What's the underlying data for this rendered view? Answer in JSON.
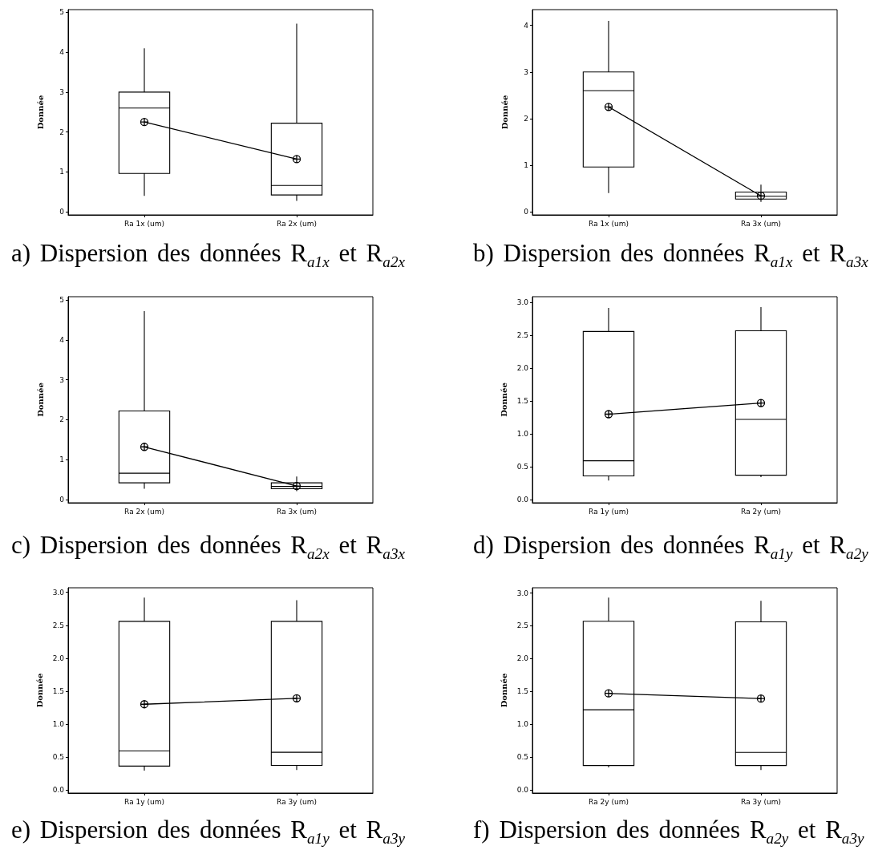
{
  "chart_data": [
    {
      "type": "box",
      "title": "a) Dispersion des données R$_{a1x}$ et R$_{a2x}$",
      "ylabel": "Donnée",
      "categories": [
        "Ra 1x (um)",
        "Ra 2x (um)"
      ],
      "marker": "cross",
      "ylim": [
        -0.08,
        5.07
      ],
      "yticks": [
        0,
        1,
        2,
        3,
        4,
        5
      ],
      "series": [
        {
          "color": "#000000",
          "boxes": [
            {
              "low": 0.4,
              "q1": 0.96,
              "median": 2.6,
              "q3": 3.0,
              "high": 4.1
            },
            {
              "low": 0.27,
              "q1": 0.42,
              "median": 0.66,
              "q3": 2.22,
              "high": 4.72
            }
          ]
        },
        {
          "type": "line",
          "color": "#000000",
          "values": [
            2.25,
            1.32
          ]
        }
      ]
    },
    {
      "type": "box",
      "title": "b) Dispersion des données R$_{a1x}$ et R$_{a3x}$",
      "ylabel": "Donnée",
      "categories": [
        "Ra 1x (um)",
        "Ra 3x (um)"
      ],
      "marker": "cross",
      "ylim": [
        -0.07,
        4.34
      ],
      "yticks": [
        0,
        1,
        2,
        3,
        4
      ],
      "series": [
        {
          "color": "#000000",
          "boxes": [
            {
              "low": 0.4,
              "q1": 0.96,
              "median": 2.6,
              "q3": 3.0,
              "high": 4.1
            },
            {
              "low": 0.21,
              "q1": 0.27,
              "median": 0.33,
              "q3": 0.42,
              "high": 0.58
            }
          ]
        },
        {
          "type": "line",
          "color": "#000000",
          "values": [
            2.25,
            0.34
          ]
        }
      ]
    },
    {
      "type": "box",
      "title": "c) Dispersion des données R$_{a2x}$ et R$_{a3x}$",
      "ylabel": "Donnée",
      "categories": [
        "Ra 2x (um)",
        "Ra 3x (um)"
      ],
      "marker": "cross",
      "ylim": [
        -0.08,
        5.08
      ],
      "yticks": [
        0,
        1,
        2,
        3,
        4,
        5
      ],
      "series": [
        {
          "color": "#000000",
          "boxes": [
            {
              "low": 0.27,
              "q1": 0.42,
              "median": 0.66,
              "q3": 2.22,
              "high": 4.72
            },
            {
              "low": 0.21,
              "q1": 0.27,
              "median": 0.33,
              "q3": 0.42,
              "high": 0.58
            }
          ]
        },
        {
          "type": "line",
          "color": "#000000",
          "values": [
            1.32,
            0.34
          ]
        }
      ]
    },
    {
      "type": "box",
      "title": "d) Dispersion des données R$_{a1y}$ et R$_{a2y}$",
      "ylabel": "Donnée",
      "categories": [
        "Ra 1y (um)",
        "Ra 2y (um)"
      ],
      "marker": "cross",
      "ylim": [
        -0.05,
        3.09
      ],
      "yticks": [
        {
          "value": 0,
          "label": "0.0"
        },
        0.5,
        {
          "value": 1,
          "label": "1.0"
        },
        1.5,
        {
          "value": 2,
          "label": "2.0"
        },
        2.5,
        {
          "value": 3,
          "label": "3.0"
        }
      ],
      "series": [
        {
          "color": "#000000",
          "boxes": [
            {
              "low": 0.29,
              "q1": 0.36,
              "median": 0.59,
              "q3": 2.56,
              "high": 2.92
            },
            {
              "low": 0.34,
              "q1": 0.37,
              "median": 1.22,
              "q3": 2.57,
              "high": 2.93
            }
          ]
        },
        {
          "type": "line",
          "color": "#000000",
          "values": [
            1.3,
            1.47
          ]
        }
      ]
    },
    {
      "type": "box",
      "title": "e) Dispersion des données R$_{a1y}$ et R$_{a3y}$",
      "ylabel": "Donnée",
      "categories": [
        "Ra 1y (um)",
        "Ra 3y (um)"
      ],
      "marker": "cross",
      "ylim": [
        -0.05,
        3.07
      ],
      "yticks": [
        {
          "value": 0,
          "label": "0.0"
        },
        0.5,
        {
          "value": 1,
          "label": "1.0"
        },
        1.5,
        {
          "value": 2,
          "label": "2.0"
        },
        2.5,
        {
          "value": 3,
          "label": "3.0"
        }
      ],
      "series": [
        {
          "color": "#000000",
          "boxes": [
            {
              "low": 0.29,
              "q1": 0.36,
              "median": 0.59,
              "q3": 2.56,
              "high": 2.92
            },
            {
              "low": 0.3,
              "q1": 0.37,
              "median": 0.57,
              "q3": 2.56,
              "high": 2.88
            }
          ]
        },
        {
          "type": "line",
          "color": "#000000",
          "values": [
            1.3,
            1.39
          ]
        }
      ]
    },
    {
      "type": "box",
      "title": "f) Dispersion des données R$_{a2y}$ et R$_{a3y}$",
      "ylabel": "Donnée",
      "categories": [
        "Ra 2y (um)",
        "Ra 3y (um)"
      ],
      "marker": "cross",
      "ylim": [
        -0.05,
        3.08
      ],
      "yticks": [
        {
          "value": 0,
          "label": "0.0"
        },
        0.5,
        {
          "value": 1,
          "label": "1.0"
        },
        1.5,
        {
          "value": 2,
          "label": "2.0"
        },
        2.5,
        {
          "value": 3,
          "label": "3.0"
        }
      ],
      "series": [
        {
          "color": "#000000",
          "boxes": [
            {
              "low": 0.34,
              "q1": 0.37,
              "median": 1.22,
              "q3": 2.57,
              "high": 2.93
            },
            {
              "low": 0.3,
              "q1": 0.37,
              "median": 0.57,
              "q3": 2.56,
              "high": 2.88
            }
          ]
        },
        {
          "type": "line",
          "color": "#000000",
          "values": [
            1.47,
            1.39
          ]
        }
      ]
    }
  ]
}
